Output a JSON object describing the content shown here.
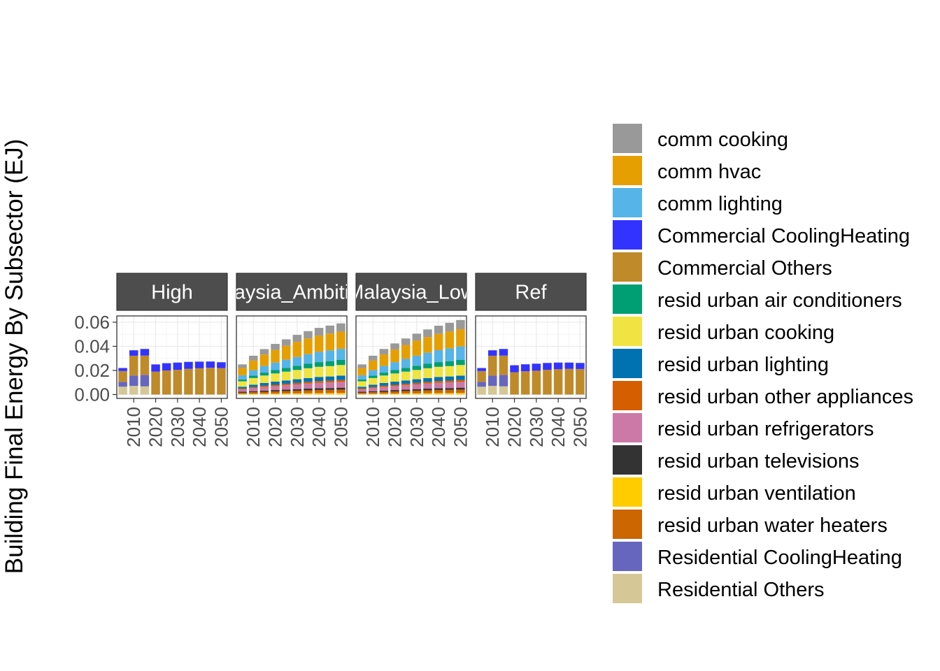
{
  "chart_data": {
    "type": "bar",
    "stacked": true,
    "title": "",
    "xlabel": "",
    "ylabel": "Building Final Energy By Subsector (EJ)",
    "ylim": [
      -0.0032,
      0.0652
    ],
    "yticks": [
      0.0,
      0.02,
      0.04,
      0.06
    ],
    "ytick_labels": [
      "0.00",
      "0.02",
      "0.04",
      "0.06"
    ],
    "xticks": [
      2010,
      2020,
      2030,
      2040,
      2050
    ],
    "xtick_labels": [
      "2010",
      "2020",
      "2030",
      "2040",
      "2050"
    ],
    "x": [
      2005,
      2010,
      2015,
      2020,
      2025,
      2030,
      2035,
      2040,
      2045,
      2050
    ],
    "grid": true,
    "legend_position": "right",
    "facets": [
      {
        "label": "High",
        "series": [
          {
            "name": "Residential Others",
            "values": [
              0.0065,
              0.0072,
              0.0068,
              null,
              null,
              null,
              null,
              null,
              null,
              null
            ]
          },
          {
            "name": "Residential CoolingHeating",
            "values": [
              0.004,
              0.0085,
              0.0095,
              null,
              null,
              null,
              null,
              null,
              null,
              null
            ]
          },
          {
            "name": "Commercial Others",
            "values": [
              0.009,
              0.0165,
              0.016,
              0.019,
              0.02,
              0.0205,
              0.0213,
              0.0218,
              0.0222,
              0.022
            ]
          },
          {
            "name": "Commercial CoolingHeating",
            "values": [
              0.0025,
              0.0045,
              0.0055,
              0.006,
              0.006,
              0.006,
              0.0058,
              0.0055,
              0.0052,
              0.0048
            ]
          }
        ]
      },
      {
        "label": "Malaysia_Ambitious",
        "series": [
          {
            "name": "resid urban ventilation",
            "values": [
              0.0005,
              0.0006,
              0.0007,
              0.0008,
              0.0009,
              0.001,
              0.0011,
              0.0012,
              0.0012,
              0.0013
            ]
          },
          {
            "name": "resid urban water heaters",
            "values": [
              0.001,
              0.0013,
              0.0016,
              0.0018,
              0.002,
              0.0022,
              0.0024,
              0.0026,
              0.0027,
              0.0028
            ]
          },
          {
            "name": "resid urban televisions",
            "values": [
              0.0008,
              0.0009,
              0.001,
              0.0011,
              0.0012,
              0.0013,
              0.0014,
              0.0015,
              0.0015,
              0.0016
            ]
          },
          {
            "name": "resid urban refrigerators",
            "values": [
              0.002,
              0.0025,
              0.003,
              0.0033,
              0.0036,
              0.0039,
              0.0042,
              0.0044,
              0.0046,
              0.0048
            ]
          },
          {
            "name": "resid urban other appliances",
            "values": [
              0.0007,
              0.0009,
              0.001,
              0.0011,
              0.0012,
              0.0013,
              0.0014,
              0.0015,
              0.0015,
              0.0016
            ]
          },
          {
            "name": "resid urban lighting",
            "values": [
              0.0015,
              0.002,
              0.0023,
              0.0026,
              0.0028,
              0.003,
              0.0032,
              0.0034,
              0.0035,
              0.0036
            ]
          },
          {
            "name": "resid urban cooking",
            "values": [
              0.0045,
              0.0055,
              0.0062,
              0.0068,
              0.0073,
              0.0077,
              0.0081,
              0.0084,
              0.0086,
              0.0088
            ]
          },
          {
            "name": "resid urban air conditioners",
            "values": [
              0.0015,
              0.002,
              0.0024,
              0.0028,
              0.0031,
              0.0034,
              0.0037,
              0.0039,
              0.0041,
              0.0042
            ]
          },
          {
            "name": "comm lighting",
            "values": [
              0.0035,
              0.0045,
              0.0055,
              0.0062,
              0.0068,
              0.0074,
              0.008,
              0.0085,
              0.0089,
              0.0092
            ]
          },
          {
            "name": "comm hvac",
            "values": [
              0.006,
              0.008,
              0.0095,
              0.0105,
              0.0115,
              0.0125,
              0.013,
              0.0135,
              0.014,
              0.0143
            ]
          },
          {
            "name": "comm cooking",
            "values": [
              0.003,
              0.004,
              0.0045,
              0.005,
              0.0054,
              0.0058,
              0.0061,
              0.0064,
              0.0066,
              0.0068
            ]
          }
        ]
      },
      {
        "label": "Malaysia_Low",
        "series": [
          {
            "name": "resid urban ventilation",
            "values": [
              0.0005,
              0.0006,
              0.0007,
              0.0008,
              0.0009,
              0.001,
              0.0011,
              0.0012,
              0.0012,
              0.0013
            ]
          },
          {
            "name": "resid urban water heaters",
            "values": [
              0.001,
              0.0013,
              0.0016,
              0.0018,
              0.002,
              0.0022,
              0.0024,
              0.0026,
              0.0027,
              0.0028
            ]
          },
          {
            "name": "resid urban televisions",
            "values": [
              0.0008,
              0.0009,
              0.001,
              0.0011,
              0.0012,
              0.0013,
              0.0014,
              0.0015,
              0.0015,
              0.0016
            ]
          },
          {
            "name": "resid urban refrigerators",
            "values": [
              0.002,
              0.0025,
              0.003,
              0.0033,
              0.0036,
              0.0039,
              0.0042,
              0.0044,
              0.0046,
              0.0048
            ]
          },
          {
            "name": "resid urban other appliances",
            "values": [
              0.0007,
              0.0009,
              0.001,
              0.0011,
              0.0012,
              0.0013,
              0.0014,
              0.0015,
              0.0015,
              0.0016
            ]
          },
          {
            "name": "resid urban lighting",
            "values": [
              0.0015,
              0.002,
              0.0023,
              0.0026,
              0.0028,
              0.003,
              0.0032,
              0.0034,
              0.0035,
              0.0036
            ]
          },
          {
            "name": "resid urban cooking",
            "values": [
              0.0045,
              0.0055,
              0.0062,
              0.0068,
              0.0073,
              0.0077,
              0.0081,
              0.0084,
              0.0086,
              0.0088
            ]
          },
          {
            "name": "resid urban air conditioners",
            "values": [
              0.0015,
              0.002,
              0.0024,
              0.0028,
              0.0031,
              0.0034,
              0.0037,
              0.0039,
              0.0041,
              0.0042
            ]
          },
          {
            "name": "comm lighting",
            "values": [
              0.0035,
              0.0045,
              0.0056,
              0.0066,
              0.0075,
              0.0084,
              0.0092,
              0.0099,
              0.0106,
              0.0112
            ]
          },
          {
            "name": "comm hvac",
            "values": [
              0.006,
              0.008,
              0.0095,
              0.0105,
              0.0115,
              0.0125,
              0.013,
              0.0135,
              0.014,
              0.0143
            ]
          },
          {
            "name": "comm cooking",
            "values": [
              0.003,
              0.004,
              0.0045,
              0.005,
              0.0054,
              0.0058,
              0.0063,
              0.0068,
              0.0072,
              0.0076
            ]
          }
        ]
      },
      {
        "label": "Ref",
        "series": [
          {
            "name": "Residential Others",
            "values": [
              0.0065,
              0.0072,
              0.0068,
              null,
              null,
              null,
              null,
              null,
              null,
              null
            ]
          },
          {
            "name": "Residential CoolingHeating",
            "values": [
              0.004,
              0.0085,
              0.0095,
              null,
              null,
              null,
              null,
              null,
              null,
              null
            ]
          },
          {
            "name": "Commercial Others",
            "values": [
              0.009,
              0.0165,
              0.016,
              0.0185,
              0.0193,
              0.0198,
              0.0205,
              0.021,
              0.0213,
              0.0212
            ]
          },
          {
            "name": "Commercial CoolingHeating",
            "values": [
              0.0025,
              0.0045,
              0.0055,
              0.0058,
              0.0058,
              0.0058,
              0.0057,
              0.0055,
              0.0052,
              0.005
            ]
          }
        ]
      }
    ],
    "legend": [
      {
        "name": "comm cooking",
        "color": "#999999"
      },
      {
        "name": "comm hvac",
        "color": "#E69F00"
      },
      {
        "name": "comm lighting",
        "color": "#56B4E9"
      },
      {
        "name": "Commercial CoolingHeating",
        "color": "#3333FF"
      },
      {
        "name": "Commercial Others",
        "color": "#BF8A2A"
      },
      {
        "name": "resid urban air conditioners",
        "color": "#009E73"
      },
      {
        "name": "resid urban cooking",
        "color": "#F0E442"
      },
      {
        "name": "resid urban lighting",
        "color": "#0072B2"
      },
      {
        "name": "resid urban other appliances",
        "color": "#D55E00"
      },
      {
        "name": "resid urban refrigerators",
        "color": "#CC79A7"
      },
      {
        "name": "resid urban televisions",
        "color": "#333333"
      },
      {
        "name": "resid urban ventilation",
        "color": "#FFCC00"
      },
      {
        "name": "resid urban water heaters",
        "color": "#CC6600"
      },
      {
        "name": "Residential CoolingHeating",
        "color": "#6666BF"
      },
      {
        "name": "Residential Others",
        "color": "#D5C796"
      }
    ]
  }
}
